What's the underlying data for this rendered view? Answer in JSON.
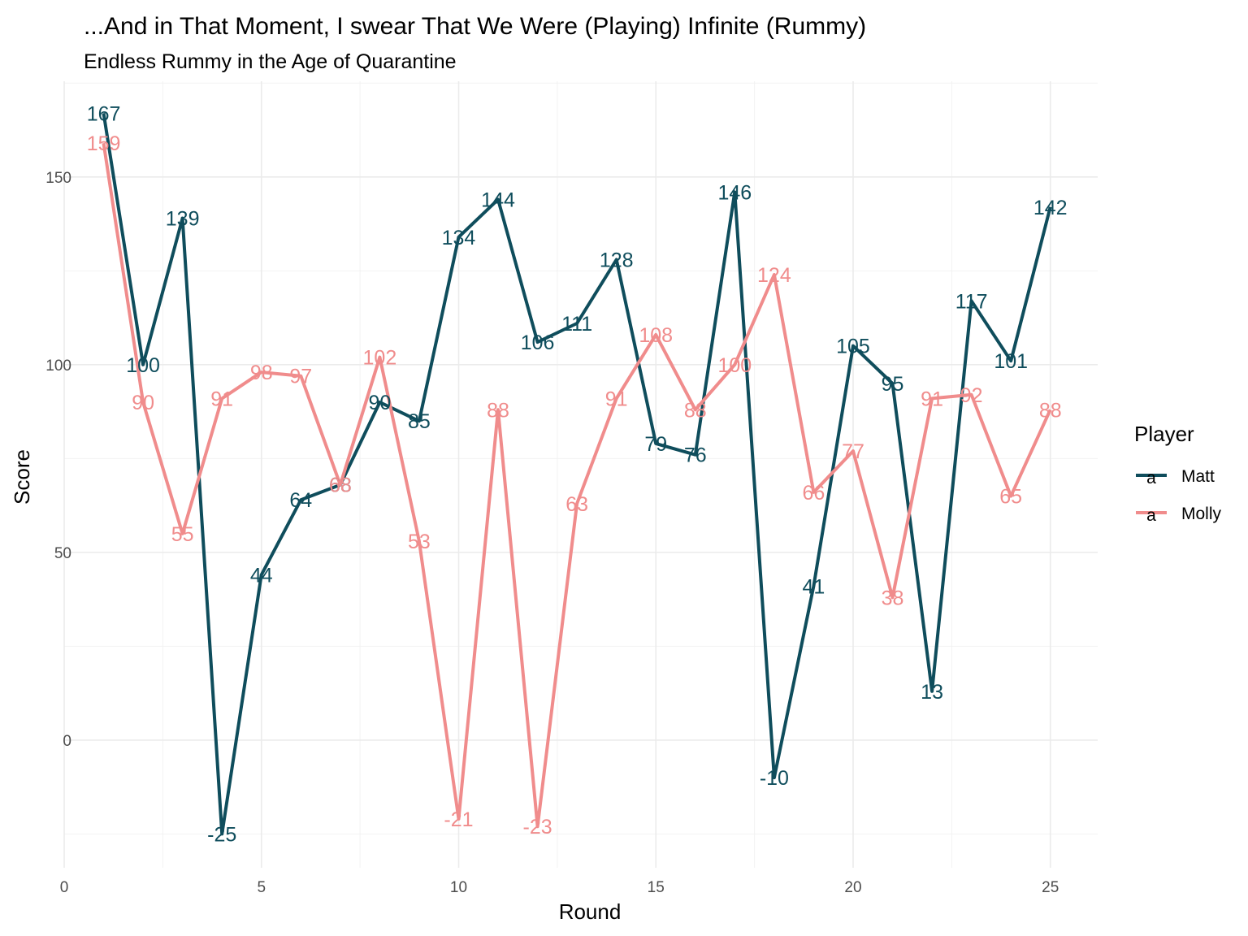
{
  "chart_data": {
    "type": "line",
    "title": "...And in That Moment, I swear That We Were (Playing) Infinite (Rummy)",
    "subtitle": "Endless Rummy in the Age of Quarantine",
    "xlabel": "Round",
    "ylabel": "Score",
    "xlim": [
      0,
      26.2
    ],
    "ylim": [
      -34,
      175.5
    ],
    "x_ticks": [
      0,
      5,
      10,
      15,
      20,
      25
    ],
    "y_ticks": [
      0,
      50,
      100,
      150
    ],
    "grid": true,
    "legend_position": "right",
    "legend_title": "Player",
    "legend_glyph": "a",
    "x": [
      1,
      2,
      3,
      4,
      5,
      6,
      7,
      8,
      9,
      10,
      11,
      12,
      13,
      14,
      15,
      16,
      17,
      18,
      19,
      20,
      21,
      22,
      23,
      24,
      25
    ],
    "series": [
      {
        "name": "Matt",
        "color": "#0f4d5c",
        "values": [
          167,
          100,
          139,
          -25,
          44,
          64,
          68,
          90,
          85,
          134,
          144,
          106,
          111,
          128,
          79,
          76,
          146,
          -10,
          41,
          105,
          95,
          13,
          117,
          101,
          142
        ]
      },
      {
        "name": "Molly",
        "color": "#f08c8c",
        "values": [
          159,
          90,
          55,
          91,
          98,
          97,
          68,
          102,
          53,
          -21,
          88,
          -23,
          63,
          91,
          108,
          88,
          100,
          124,
          66,
          77,
          38,
          91,
          92,
          65,
          88
        ]
      }
    ]
  }
}
